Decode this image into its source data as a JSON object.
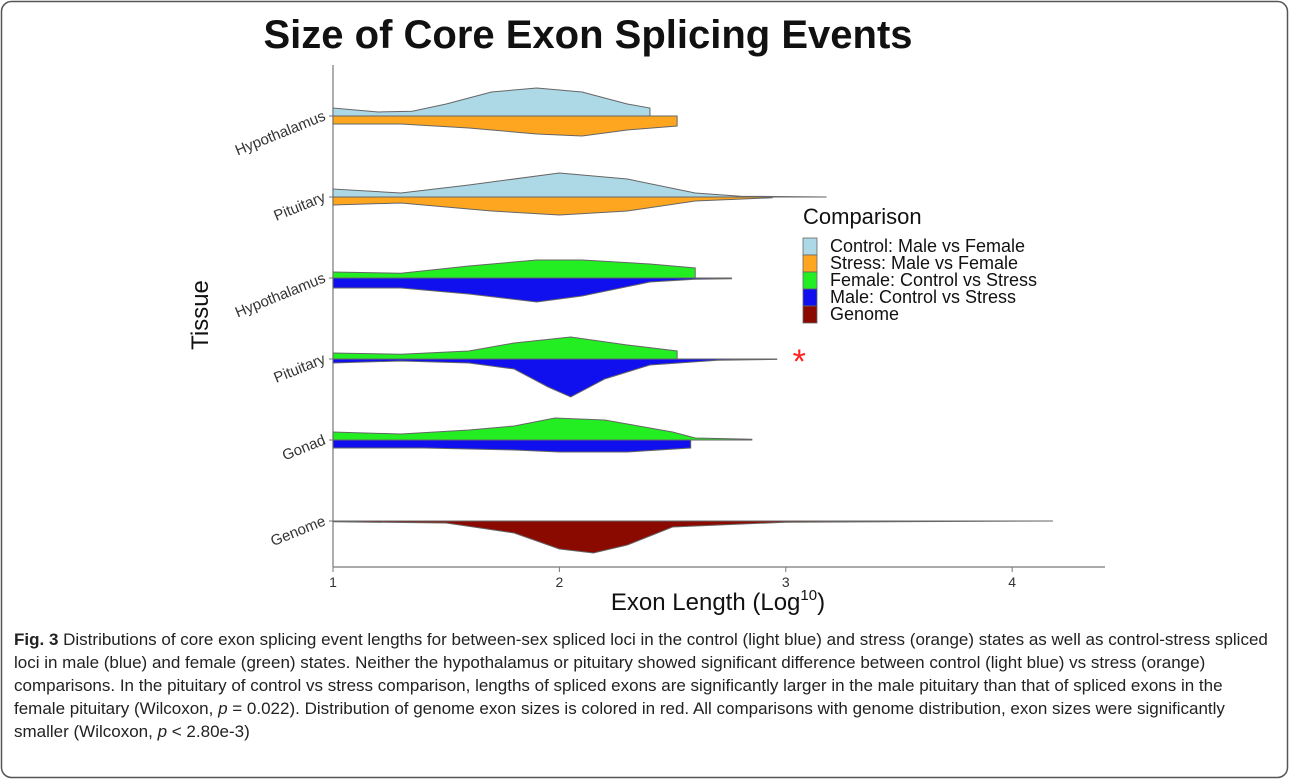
{
  "chart_data": {
    "type": "violin",
    "title": "Size of Core Exon Splicing Events",
    "x_label": [
      "Exon Length  (Log",
      "10",
      ")"
    ],
    "y_label": "Tissue",
    "categories": [
      "Hypothalamus",
      "Pituitary",
      "Hypothalamus",
      "Pituitary",
      "Gonad",
      "Genome"
    ],
    "xlim": [
      1,
      4.41
    ],
    "xticks": [
      1,
      2,
      3,
      4
    ],
    "legend_title": "Comparison",
    "legend": "right",
    "series": [
      {
        "name": "Control: Male vs Female",
        "color": "#add8e6",
        "side": "upper",
        "violins": [
          {
            "x": [
              1,
              1.2,
              1.35,
              1.5,
              1.7,
              1.9,
              2.1,
              2.3,
              2.4,
              2.4
            ],
            "density": [
              0.2,
              0.1,
              0.12,
              0.3,
              0.6,
              0.7,
              0.6,
              0.3,
              0.2,
              0
            ]
          },
          {
            "x": [
              1,
              1.3,
              1.6,
              2,
              2.3,
              2.6,
              2.8,
              3,
              3.18
            ],
            "density": [
              0.2,
              0.1,
              0.3,
              0.6,
              0.45,
              0.1,
              0.02,
              0.01,
              0
            ]
          },
          null,
          null,
          null,
          null
        ]
      },
      {
        "name": "Stress: Male vs Female",
        "color": "#ffa620",
        "side": "lower",
        "violins": [
          {
            "x": [
              1,
              1.3,
              1.6,
              1.9,
              2.1,
              2.3,
              2.52
            ],
            "density": [
              0.2,
              0.2,
              0.3,
              0.45,
              0.5,
              0.35,
              0.25
            ]
          },
          {
            "x": [
              1,
              1.3,
              1.7,
              2,
              2.3,
              2.6,
              2.94
            ],
            "density": [
              0.2,
              0.15,
              0.35,
              0.45,
              0.35,
              0.1,
              0.02
            ]
          },
          null,
          null,
          null,
          null
        ]
      },
      {
        "name": "Female: Control vs Stress",
        "color": "#22ee22",
        "side": "upper",
        "violins": [
          null,
          null,
          {
            "x": [
              1,
              1.3,
              1.6,
              1.9,
              2.1,
              2.4,
              2.6,
              2.6
            ],
            "density": [
              0.15,
              0.12,
              0.3,
              0.45,
              0.45,
              0.35,
              0.25,
              0
            ]
          },
          {
            "x": [
              1,
              1.3,
              1.6,
              1.8,
              2.05,
              2.3,
              2.52,
              2.52
            ],
            "density": [
              0.15,
              0.12,
              0.2,
              0.4,
              0.55,
              0.35,
              0.2,
              0
            ]
          },
          {
            "x": [
              1,
              1.3,
              1.6,
              1.8,
              1.98,
              2.2,
              2.5,
              2.6,
              2.85
            ],
            "density": [
              0.2,
              0.15,
              0.25,
              0.35,
              0.55,
              0.5,
              0.2,
              0.05,
              0.02
            ]
          },
          null
        ]
      },
      {
        "name": "Male: Control vs Stress",
        "color": "#1010ee",
        "side": "lower",
        "violins": [
          null,
          null,
          {
            "x": [
              1,
              1.3,
              1.6,
              1.9,
              2.1,
              2.4,
              2.6,
              2.76
            ],
            "density": [
              0.25,
              0.25,
              0.4,
              0.6,
              0.45,
              0.1,
              0.03,
              0.02
            ]
          },
          {
            "x": [
              1,
              1.3,
              1.6,
              1.8,
              1.95,
              2.05,
              2.2,
              2.4,
              2.7,
              2.96
            ],
            "density": [
              0.1,
              0.05,
              0.1,
              0.25,
              0.7,
              0.95,
              0.5,
              0.15,
              0.03,
              0.01
            ]
          },
          {
            "x": [
              1,
              1.4,
              1.8,
              2,
              2.3,
              2.58,
              2.58
            ],
            "density": [
              0.2,
              0.2,
              0.25,
              0.3,
              0.3,
              0.2,
              0
            ]
          },
          null
        ]
      },
      {
        "name": "Genome",
        "color": "#8b0a00",
        "side": "lower",
        "violins": [
          null,
          null,
          null,
          null,
          null,
          {
            "x": [
              1,
              1.5,
              1.8,
              2,
              2.15,
              2.3,
              2.5,
              3,
              3.8,
              4.18
            ],
            "density": [
              0.02,
              0.05,
              0.3,
              0.7,
              0.8,
              0.6,
              0.15,
              0.03,
              0.01,
              0
            ]
          }
        ]
      }
    ],
    "annotations": [
      {
        "text": "*",
        "color": "#ff2020",
        "category": 3,
        "x": 3.03
      }
    ]
  },
  "caption": {
    "label": "Fig. 3",
    "parts": [
      " Distributions of core exon splicing event lengths for between-sex spliced loci in the control (light blue) and stress (orange) states as well as control-stress spliced loci in male (blue) and female (green) states. Neither the hypothalamus or pituitary showed significant difference between control (light blue) vs stress (orange) comparisons. In the pituitary of control vs stress comparison, lengths of spliced exons are significantly larger in the male pituitary than that of spliced exons in the female pituitary (Wilcoxon, ",
      "p",
      " = 0.022). Distribution of genome exon sizes is colored in red. All comparisons with genome distribution, exon sizes were significantly smaller (Wilcoxon, ",
      "p",
      " < 2.80e-3)"
    ]
  }
}
